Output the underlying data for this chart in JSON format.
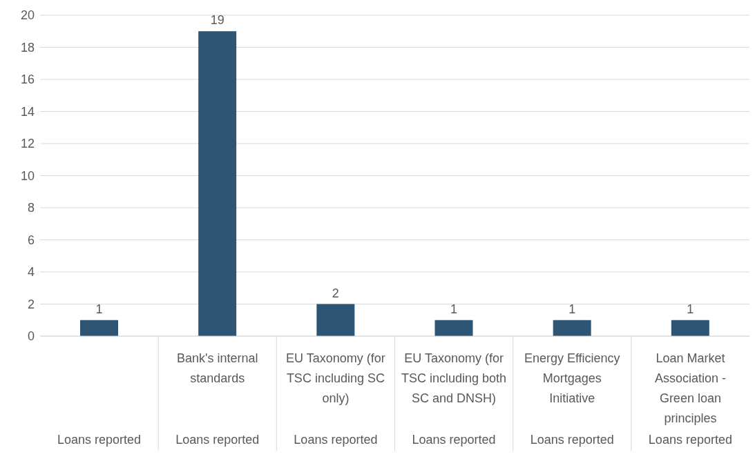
{
  "chart_data": {
    "type": "bar",
    "categories": [
      "Loans reported",
      "Bank's internal standards\nLoans reported",
      "EU Taxonomy (for TSC including SC only)\nLoans reported",
      "EU Taxonomy (for TSC including both SC and DNSH)\nLoans reported",
      "Energy Efficiency Mortgages Initiative\nLoans reported",
      "Loan Market Association - Green loan principles\nLoans reported"
    ],
    "values": [
      1,
      19,
      2,
      1,
      1,
      1
    ],
    "color": "#2e5573",
    "ylim": [
      0,
      20
    ],
    "yticks": [
      0,
      2,
      4,
      6,
      8,
      10,
      12,
      14,
      16,
      18,
      20
    ],
    "grid": "y",
    "data_labels": true
  }
}
